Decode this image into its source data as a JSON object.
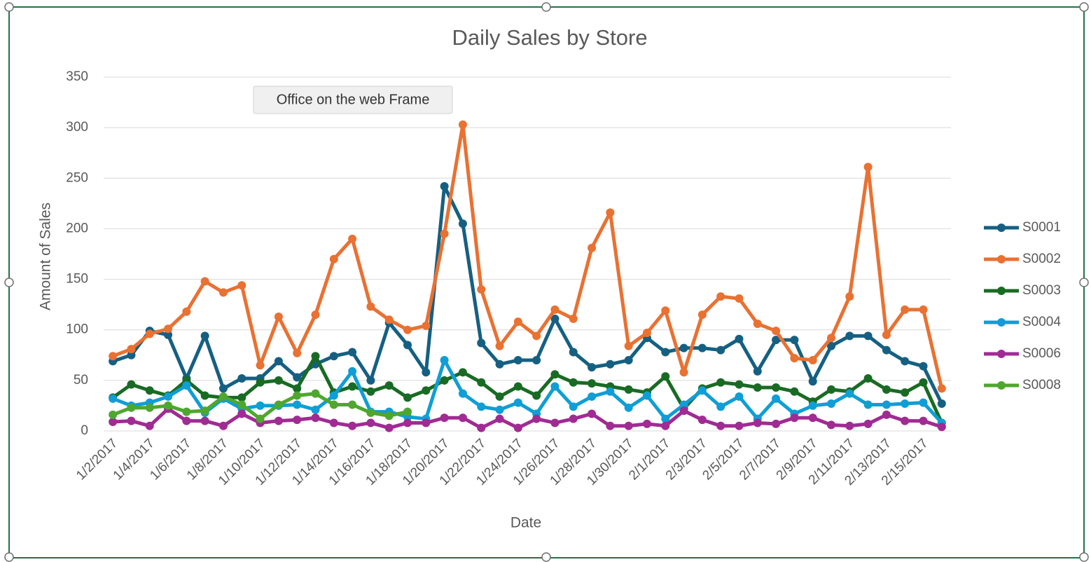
{
  "tooltip": "Office on the web Frame",
  "chart_data": {
    "type": "line",
    "title": "Daily Sales by Store",
    "x_label": "Date",
    "y_label": "Amount of Sales",
    "categories": [
      "1/2/2017",
      null,
      "1/4/2017",
      null,
      "1/6/2017",
      null,
      "1/8/2017",
      null,
      "1/10/2017",
      null,
      "1/12/2017",
      null,
      "1/14/2017",
      null,
      "1/16/2017",
      null,
      "1/18/2017",
      null,
      "1/20/2017",
      null,
      "1/22/2017",
      null,
      "1/24/2017",
      null,
      "1/26/2017",
      null,
      "1/28/2017",
      null,
      "1/30/2017",
      null,
      "2/1/2017",
      null,
      "2/3/2017",
      null,
      "2/5/2017",
      null,
      "2/7/2017",
      null,
      "2/9/2017",
      null,
      "2/11/2017",
      null,
      "2/13/2017",
      null,
      "2/15/2017",
      null
    ],
    "ylim": [
      0,
      350
    ],
    "yticks": [
      0,
      50,
      100,
      150,
      200,
      250,
      300,
      350
    ],
    "grid": true,
    "legend": "right",
    "series": [
      {
        "name": "S0001",
        "color": "#156082",
        "values": [
          69,
          75,
          99,
          95,
          52,
          94,
          42,
          52,
          52,
          69,
          53,
          66,
          74,
          78,
          50,
          107,
          85,
          58,
          242,
          205,
          87,
          66,
          70,
          70,
          111,
          78,
          63,
          66,
          70,
          92,
          78,
          82,
          82,
          80,
          91,
          59,
          90,
          90,
          49,
          84,
          94,
          94,
          80,
          69,
          64,
          27
        ]
      },
      {
        "name": "S0002",
        "color": "#e97132",
        "values": [
          74,
          81,
          96,
          101,
          118,
          148,
          137,
          144,
          65,
          113,
          77,
          115,
          170,
          190,
          123,
          110,
          100,
          104,
          195,
          303,
          140,
          84,
          108,
          94,
          120,
          111,
          181,
          216,
          84,
          97,
          119,
          58,
          115,
          133,
          131,
          106,
          99,
          72,
          70,
          92,
          133,
          261,
          95,
          120,
          120,
          42
        ]
      },
      {
        "name": "S0003",
        "color": "#196b24",
        "values": [
          33,
          46,
          40,
          35,
          50,
          35,
          33,
          33,
          48,
          50,
          42,
          74,
          38,
          44,
          39,
          45,
          33,
          40,
          50,
          58,
          48,
          34,
          44,
          35,
          56,
          48,
          47,
          44,
          41,
          38,
          54,
          22,
          42,
          48,
          46,
          43,
          43,
          39,
          29,
          41,
          39,
          52,
          41,
          38,
          48,
          8
        ]
      },
      {
        "name": "S0004",
        "color": "#0f9ed5",
        "values": [
          32,
          25,
          28,
          34,
          45,
          18,
          32,
          22,
          25,
          25,
          26,
          21,
          35,
          59,
          19,
          19,
          14,
          12,
          70,
          37,
          24,
          21,
          28,
          17,
          44,
          24,
          34,
          39,
          23,
          35,
          12,
          26,
          40,
          24,
          34,
          12,
          32,
          17,
          25,
          27,
          37,
          26,
          26,
          27,
          28,
          8
        ]
      },
      {
        "name": "S0006",
        "color": "#a02b93",
        "values": [
          9,
          10,
          5,
          22,
          10,
          10,
          5,
          17,
          8,
          10,
          11,
          13,
          8,
          5,
          8,
          3,
          8,
          8,
          13,
          13,
          3,
          12,
          3,
          12,
          8,
          12,
          17,
          5,
          5,
          7,
          5,
          20,
          11,
          5,
          5,
          8,
          7,
          13,
          13,
          6,
          5,
          7,
          16,
          10,
          10,
          4
        ]
      },
      {
        "name": "S0008",
        "color": "#4ea72e",
        "values": [
          16,
          23,
          23,
          25,
          19,
          20,
          34,
          26,
          12,
          26,
          35,
          37,
          26,
          26,
          18,
          15,
          19,
          null,
          null,
          null,
          null,
          null,
          null,
          null,
          null,
          null,
          null,
          null,
          null,
          null,
          null,
          null,
          null,
          null,
          null,
          null,
          null,
          null,
          null,
          null,
          null,
          null,
          null,
          null,
          null,
          null
        ]
      }
    ]
  }
}
